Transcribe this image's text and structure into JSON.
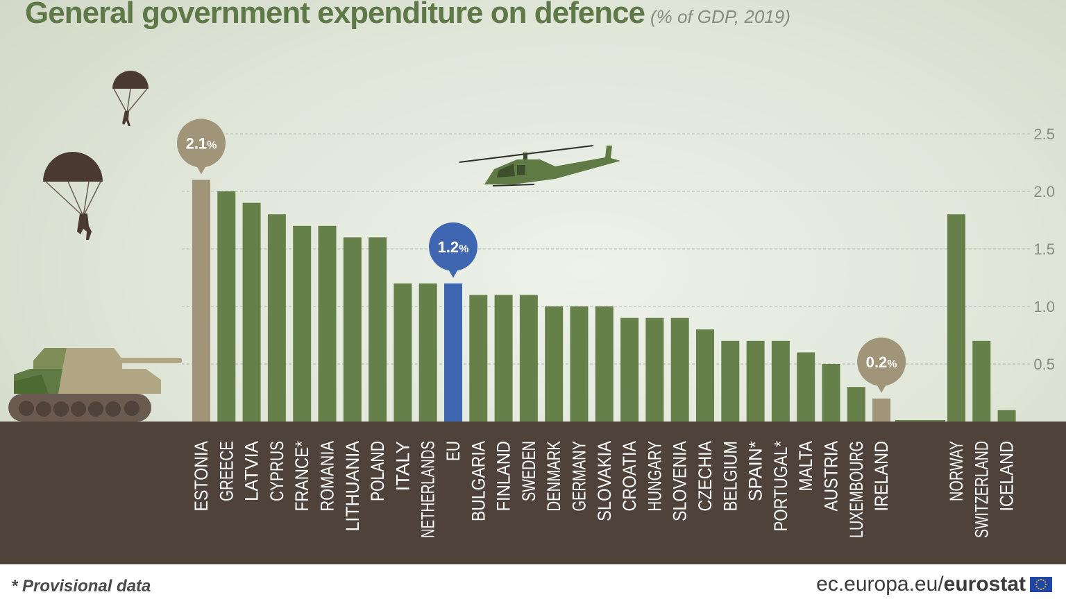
{
  "header": {
    "title": "General government expenditure on defence",
    "subtitle": "(% of GDP, 2019)"
  },
  "footer": {
    "note": "* Provisional data",
    "source_domain": "ec.europa.eu/",
    "source_brand": "eurostat"
  },
  "colors": {
    "bar": "#66804a",
    "highlight_tan": "#a09579",
    "highlight_eu": "#3f67b1",
    "ground": "#4e423b"
  },
  "icons": [
    "parachutist-icon",
    "parachutist-icon",
    "helicopter-icon",
    "tank-icon",
    "eu-flag-icon"
  ],
  "chart_data": {
    "type": "bar",
    "title": "General government expenditure on defence",
    "subtitle": "(% of GDP, 2019)",
    "xlabel": "",
    "ylabel": "% of GDP",
    "ylim": [
      0,
      2.5
    ],
    "yticks": [
      "0.5",
      "1.0",
      "1.5",
      "2.0",
      "2.5"
    ],
    "grid": true,
    "categories": [
      "ESTONIA",
      "GREECE",
      "LATVIA",
      "CYPRUS",
      "FRANCE*",
      "ROMANIA",
      "LITHUANIA",
      "POLAND",
      "ITALY",
      "NETHERLANDS",
      "EU",
      "BULGARIA",
      "FINLAND",
      "SWEDEN",
      "DENMARK",
      "GERMANY",
      "SLOVAKIA",
      "CROATIA",
      "HUNGARY",
      "SLOVENIA",
      "CZECHIA",
      "BELGIUM",
      "SPAIN*",
      "PORTUGAL*",
      "MALTA",
      "AUSTRIA",
      "LUXEMBOURG",
      "IRELAND",
      "NORWAY",
      "SWITZERLAND",
      "ICELAND"
    ],
    "values": [
      2.1,
      2.0,
      1.9,
      1.8,
      1.7,
      1.7,
      1.6,
      1.6,
      1.2,
      1.2,
      1.2,
      1.1,
      1.1,
      1.1,
      1.0,
      1.0,
      1.0,
      0.9,
      0.9,
      0.9,
      0.8,
      0.7,
      0.7,
      0.7,
      0.6,
      0.5,
      0.3,
      0.2,
      1.8,
      0.7,
      0.1
    ],
    "highlights": [
      {
        "category": "ESTONIA",
        "label": "2.1",
        "unit": "%",
        "color": "#a09579"
      },
      {
        "category": "EU",
        "label": "1.2",
        "unit": "%",
        "color": "#3f67b1"
      },
      {
        "category": "IRELAND",
        "label": "0.2",
        "unit": "%",
        "color": "#a09579"
      }
    ]
  }
}
